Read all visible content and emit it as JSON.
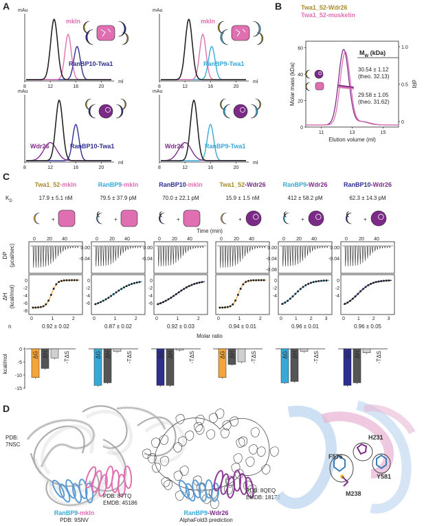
{
  "panels": {
    "A": "A",
    "B": "B",
    "C": "C",
    "D": "D"
  },
  "colors": {
    "pink": "#e06fb2",
    "navy": "#2d2e8f",
    "cyan": "#36a9d8",
    "purple": "#7b2b87",
    "gold": "#a88b2c",
    "orange": "#f4a53a",
    "black": "#222222",
    "grey": "#666666",
    "lightgrey": "#cccccc",
    "ligand_gold": "#f2c12e"
  },
  "panel_a": {
    "plots": [
      {
        "id": "a1",
        "ylabel": "mAu",
        "xlabel": "ml",
        "ticks": [
          "8",
          "12",
          "16",
          "20"
        ],
        "labels": [
          {
            "text": "mkln",
            "color": "pink"
          },
          {
            "text": "RanBP10-Twa1",
            "color": "navy"
          }
        ]
      },
      {
        "id": "a2",
        "ylabel": "mAu",
        "xlabel": "ml",
        "ticks": [
          "8",
          "12",
          "16",
          "20"
        ],
        "labels": [
          {
            "text": "mkln",
            "color": "pink"
          },
          {
            "text": "RanBP9-Twa1",
            "color": "cyan"
          }
        ]
      },
      {
        "id": "a3",
        "ylabel": "mAu",
        "xlabel": "ml",
        "ticks": [
          "8",
          "12",
          "16",
          "20"
        ],
        "labels": [
          {
            "text": "Wdr26",
            "color": "purple"
          },
          {
            "text": "RanBP10-Twa1",
            "color": "navy"
          }
        ]
      },
      {
        "id": "a4",
        "ylabel": "mAu",
        "xlabel": "ml",
        "ticks": [
          "8",
          "12",
          "16",
          "20"
        ],
        "labels": [
          {
            "text": "Wdr26",
            "color": "purple"
          },
          {
            "text": "RanBP9-Twa1",
            "color": "cyan"
          }
        ]
      }
    ]
  },
  "panel_b": {
    "legend": [
      {
        "text": "Twa1_52-Wdr26",
        "color": "gold"
      },
      {
        "text": "Twa1_52-muskelin",
        "color": "pink"
      }
    ],
    "ylabel": "Molar mass (kDa)",
    "y2label": "dRI",
    "xlabel": "Elution volume (ml)",
    "yticks": [
      "0",
      "20",
      "40",
      "60"
    ],
    "y2ticks": [
      "0",
      "0.5",
      "1.0"
    ],
    "xticks": [
      "11",
      "13",
      "15"
    ],
    "mw_header": "M",
    "mw_sub": "W",
    "mw_unit": " (kDa)",
    "values": [
      {
        "line1": "30.54 ± 1.12",
        "line2": "(theo. 32.13)",
        "color": "purple"
      },
      {
        "line1": "29.58 ± 1.05",
        "line2": "(theo. 31.62)",
        "color": "pink"
      }
    ]
  },
  "panel_c": {
    "kd_label": "K",
    "kd_sub": "D",
    "time_label": "Time (min)",
    "dp_label": "DP",
    "dp_unit": "(μcal/sec)",
    "dh_label": "ΔH",
    "dh_unit": "(kcal/mol)",
    "n_label": "n",
    "molar_ratio": "Molar ratio",
    "kcal_label": "kcal/mol",
    "time_ticks": [
      "0",
      "20",
      "40"
    ],
    "columns": [
      {
        "partA": "Twa1_52",
        "colorA": "gold",
        "partB": "mkln",
        "colorB": "pink",
        "kd": "17.9 ± 5.1 nM",
        "n": "0.92 ± 0.02",
        "dp_ticks": [],
        "dh_ticks": [
          "0",
          "-2",
          "-4",
          "-6",
          "-8"
        ],
        "mr_ticks": [
          "0",
          "1",
          "2"
        ],
        "fit_color": "orange",
        "thermo": {
          "dG": -11,
          "dH": -7.5,
          "mTdS": -3.5
        }
      },
      {
        "partA": "RanBP9",
        "colorA": "cyan",
        "partB": "mkln",
        "colorB": "pink",
        "kd": "79.5 ± 37.9 pM",
        "n": "0.87 ± 0.02",
        "dp_ticks": [
          "0.00",
          "-0.04"
        ],
        "dh_ticks": [
          "0",
          "-2",
          "-4",
          "-6"
        ],
        "mr_ticks": [
          "0",
          "1",
          "2"
        ],
        "fit_color": "cyan",
        "thermo": {
          "dG": -14,
          "dH": -13,
          "mTdS": -1
        }
      },
      {
        "partA": "RanBP10",
        "colorA": "navy",
        "partB": "mkln",
        "colorB": "pink",
        "kd": "70.0 ± 22.1 pM",
        "n": "0.92 ± 0.03",
        "dp_ticks": [
          "0.00",
          "-0.04"
        ],
        "dh_ticks": [
          "0",
          "-2",
          "-4",
          "-6"
        ],
        "mr_ticks": [
          "0",
          "1",
          "2"
        ],
        "fit_color": "navy",
        "thermo": {
          "dG": -14,
          "dH": -14,
          "mTdS": -0.5
        }
      },
      {
        "partA": "Twa1_52",
        "colorA": "gold",
        "partB": "Wdr26",
        "colorB": "purple",
        "kd": "15.9 ± 1.5 nM",
        "n": "0.94 ± 0.01",
        "dp_ticks": [],
        "dh_ticks": [],
        "mr_ticks": [
          "0",
          "1",
          "2"
        ],
        "fit_color": "orange",
        "thermo": {
          "dG": -11,
          "dH": -6,
          "mTdS": -5
        }
      },
      {
        "partA": "RanBP9",
        "colorA": "cyan",
        "partB": "Wdr26",
        "colorB": "purple",
        "kd": "412 ± 58.2 pM",
        "n": "0.96 ± 0.01",
        "dp_ticks": [
          "0.00",
          "-0.04",
          "-0.08"
        ],
        "dh_ticks": [
          "0",
          "-2",
          "-4"
        ],
        "mr_ticks": [
          "0",
          "1",
          "2",
          "3"
        ],
        "fit_color": "cyan",
        "thermo": {
          "dG": -13,
          "dH": -12.5,
          "mTdS": -1
        }
      },
      {
        "partA": "RanBP10",
        "colorA": "navy",
        "partB": "Wdr26",
        "colorB": "purple",
        "kd": "62.3 ± 14.3 pM",
        "n": "0.96 ± 0.05",
        "dp_ticks": [
          "0.00",
          "-0.04"
        ],
        "dh_ticks": [
          "0",
          "-2",
          "-4"
        ],
        "mr_ticks": [
          "0",
          "1",
          "2",
          "3"
        ],
        "fit_color": "navy",
        "thermo": {
          "dG": -14,
          "dH": -13,
          "mTdS": -1.5
        }
      }
    ],
    "thermo_labels": {
      "dG": "ΔG",
      "dH": "ΔH",
      "mTdS": "-TΔS"
    },
    "thermo_ticks": [
      "0",
      "-5",
      "-10",
      "-15"
    ]
  },
  "panel_d": {
    "left": {
      "pdb1a": "PDB:",
      "pdb1b": "7NSC",
      "pdb2a": "PDB: 8TTQ",
      "pdb2b": "EMDB: 45186",
      "cap1a": "RanBP9",
      "cap1b": "-",
      "cap1c": "mkln",
      "cap2": "PDB: 9SNV"
    },
    "middle": {
      "pdb3a": "PDB: 8QEQ",
      "pdb3b": "EMDB: 18172",
      "cap1a": "RanBP9",
      "cap1b": "-",
      "cap1c": "Wdr26",
      "cap2": "AlphaFold3 prediction"
    },
    "right": {
      "residues": [
        "H231",
        "F576",
        "Y581",
        "M238"
      ]
    }
  }
}
